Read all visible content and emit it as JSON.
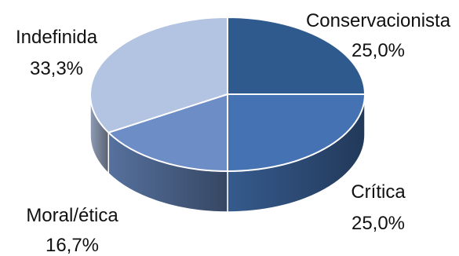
{
  "chart_data": {
    "type": "pie",
    "title": "",
    "slices": [
      {
        "label": "Conservacionista",
        "value": 25.0,
        "value_label": "25,0%",
        "color": "#2E5A8E"
      },
      {
        "label": "Crítica",
        "value": 25.0,
        "value_label": "25,0%",
        "color": "#4472B2"
      },
      {
        "label": "Moral/ética",
        "value": 16.7,
        "value_label": "16,7%",
        "color": "#6C8DC6"
      },
      {
        "label": "Indefinida",
        "value": 33.3,
        "value_label": "33,3%",
        "color": "#B3C3E2"
      }
    ],
    "style": "3d",
    "legend": "none"
  }
}
